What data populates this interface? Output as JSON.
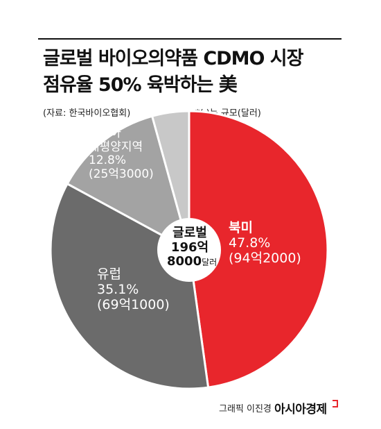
{
  "header": {
    "title_line1": "글로벌 바이오의약품 CDMO 시장",
    "title_line2": "점유율 50% 육박하는 美",
    "source": "(자료: 한국바이오협회)",
    "unit_note": "*(   )는 규모(달러)"
  },
  "center": {
    "line1": "글로벌",
    "line2": "196억",
    "line3_num": "8000",
    "line3_unit": "달러"
  },
  "chart_data": {
    "type": "pie",
    "title": "글로벌 바이오의약품 CDMO 시장 점유율 50% 육박하는 美",
    "total": "196억8000달러",
    "slices": [
      {
        "name": "북미",
        "percent": 47.8,
        "pct_label": "47.8%",
        "amount": "(94억2000)",
        "color": "#e8262c"
      },
      {
        "name": "유럽",
        "percent": 35.1,
        "pct_label": "35.1%",
        "amount": "(69억1000)",
        "color": "#6b6b6b"
      },
      {
        "name": "아시아 태평양지역",
        "name_line1": "아시아",
        "name_line2": "태평양지역",
        "percent": 12.8,
        "pct_label": "12.8%",
        "amount": "(25억3000)",
        "color": "#a3a3a3"
      },
      {
        "name": "",
        "percent": 4.3,
        "color": "#c8c8c8"
      }
    ]
  },
  "footer": {
    "credit": "그래픽 이진경",
    "brand": "아시아경제"
  }
}
